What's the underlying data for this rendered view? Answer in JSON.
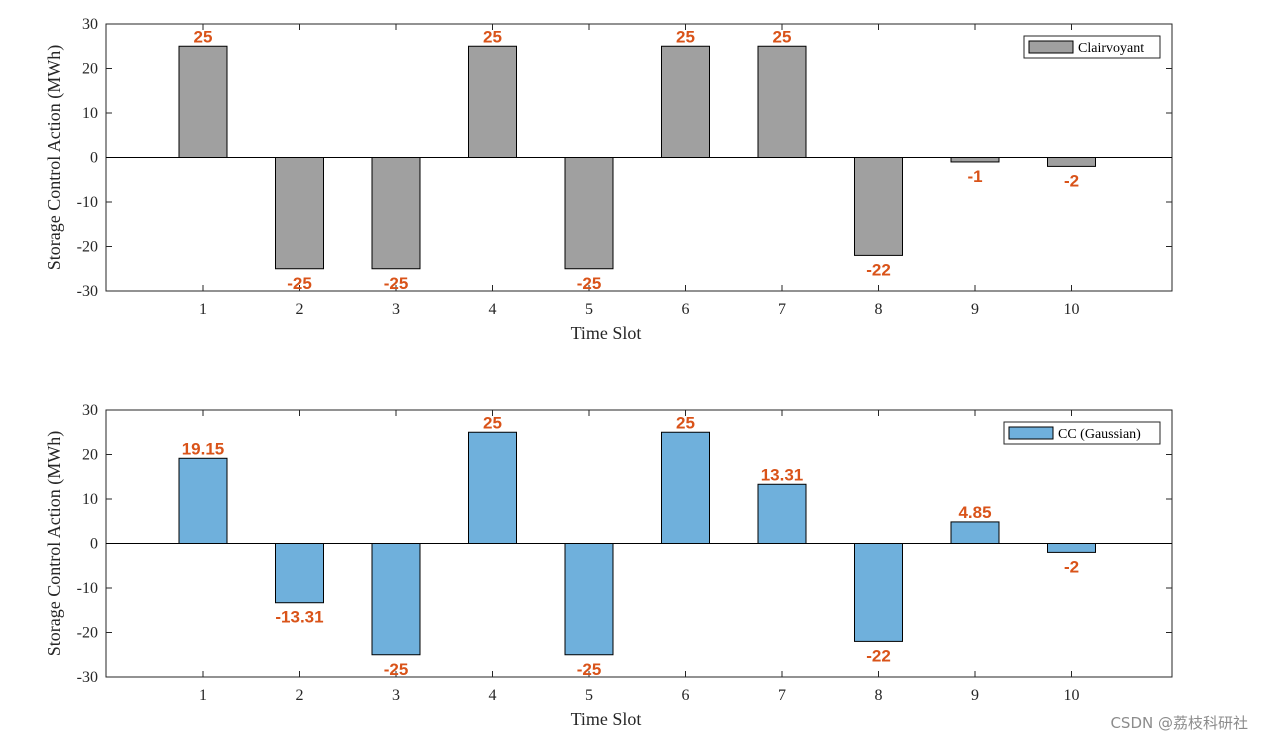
{
  "chart_data": [
    {
      "type": "bar",
      "categories": [
        "1",
        "2",
        "3",
        "4",
        "5",
        "6",
        "7",
        "8",
        "9",
        "10"
      ],
      "values": [
        25,
        -25,
        -25,
        25,
        -25,
        25,
        25,
        -22,
        -1,
        -2
      ],
      "value_labels": [
        "25",
        "-25",
        "-25",
        "25",
        "-25",
        "25",
        "25",
        "-22",
        "-1",
        "-2"
      ],
      "series": [
        {
          "name": "Clairvoyant",
          "values": [
            25,
            -25,
            -25,
            25,
            -25,
            25,
            25,
            -22,
            -1,
            -2
          ]
        }
      ],
      "xlabel": "Time Slot",
      "ylabel": "Storage Control Action (MWh)",
      "ylim": [
        -30,
        30
      ],
      "yticks": [
        "30",
        "20",
        "10",
        "0",
        "-10",
        "-20",
        "-30"
      ],
      "ytick_values": [
        30,
        20,
        10,
        0,
        -10,
        -20,
        -30
      ],
      "grid": false,
      "legend": "top-right",
      "bar_color": "#a0a0a0",
      "label_color": "#d95319"
    },
    {
      "type": "bar",
      "categories": [
        "1",
        "2",
        "3",
        "4",
        "5",
        "6",
        "7",
        "8",
        "9",
        "10"
      ],
      "values": [
        19.15,
        -13.31,
        -25,
        25,
        -25,
        25,
        13.31,
        -22,
        4.85,
        -2
      ],
      "value_labels": [
        "19.15",
        "-13.31",
        "-25",
        "25",
        "-25",
        "25",
        "13.31",
        "-22",
        "4.85",
        "-2"
      ],
      "series": [
        {
          "name": "CC (Gaussian)",
          "values": [
            19.15,
            -13.31,
            -25,
            25,
            -25,
            25,
            13.31,
            -22,
            4.85,
            -2
          ]
        }
      ],
      "xlabel": "Time Slot",
      "ylabel": "Storage Control Action (MWh)",
      "ylim": [
        -30,
        30
      ],
      "yticks": [
        "30",
        "20",
        "10",
        "0",
        "-10",
        "-20",
        "-30"
      ],
      "ytick_values": [
        30,
        20,
        10,
        0,
        -10,
        -20,
        -30
      ],
      "grid": false,
      "legend": "top-right",
      "bar_color": "#6fb0dc",
      "label_color": "#d95319"
    }
  ],
  "watermark": "CSDN @荔枝科研社"
}
